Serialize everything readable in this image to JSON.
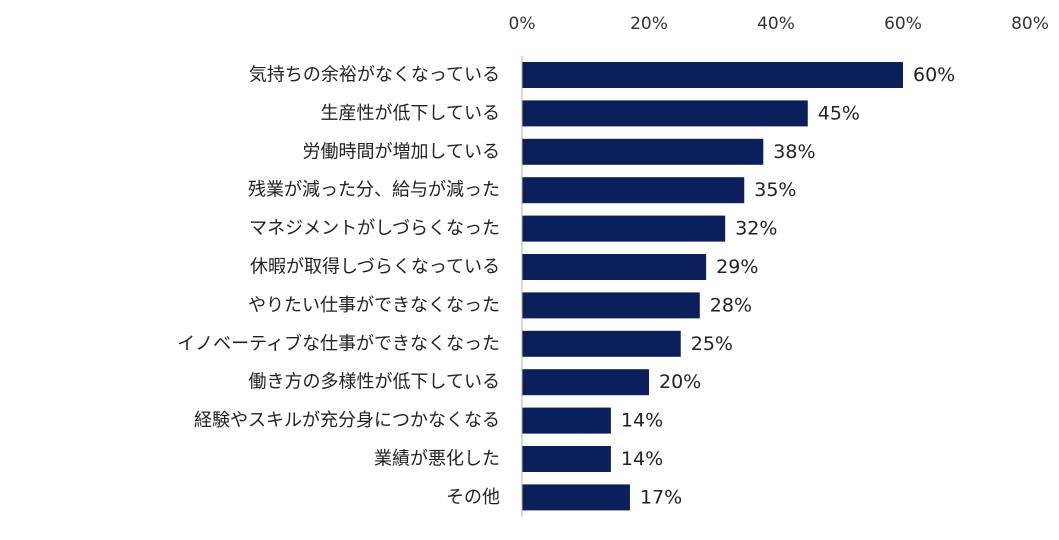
{
  "chart_data": {
    "type": "bar",
    "orientation": "horizontal",
    "title": "",
    "xlabel": "",
    "ylabel": "",
    "xlim": [
      0,
      80
    ],
    "ticks": [
      0,
      20,
      40,
      60,
      80
    ],
    "tick_suffix": "%",
    "grid": false,
    "bar_color": "#0b1f5c",
    "axis_color": "#b0b0b0",
    "categories": [
      "気持ちの余裕がなくなっている",
      "生産性が低下している",
      "労働時間が増加している",
      "残業が減った分、給与が減った",
      "マネジメントがしづらくなった",
      "休暇が取得しづらくなっている",
      "やりたい仕事ができなくなった",
      "イノベーティブな仕事ができなくなった",
      "働き方の多様性が低下している",
      "経験やスキルが充分身につかなくなる",
      "業績が悪化した",
      "その他"
    ],
    "values": [
      60,
      45,
      38,
      35,
      32,
      29,
      28,
      25,
      20,
      14,
      14,
      17
    ],
    "value_suffix": "%"
  }
}
